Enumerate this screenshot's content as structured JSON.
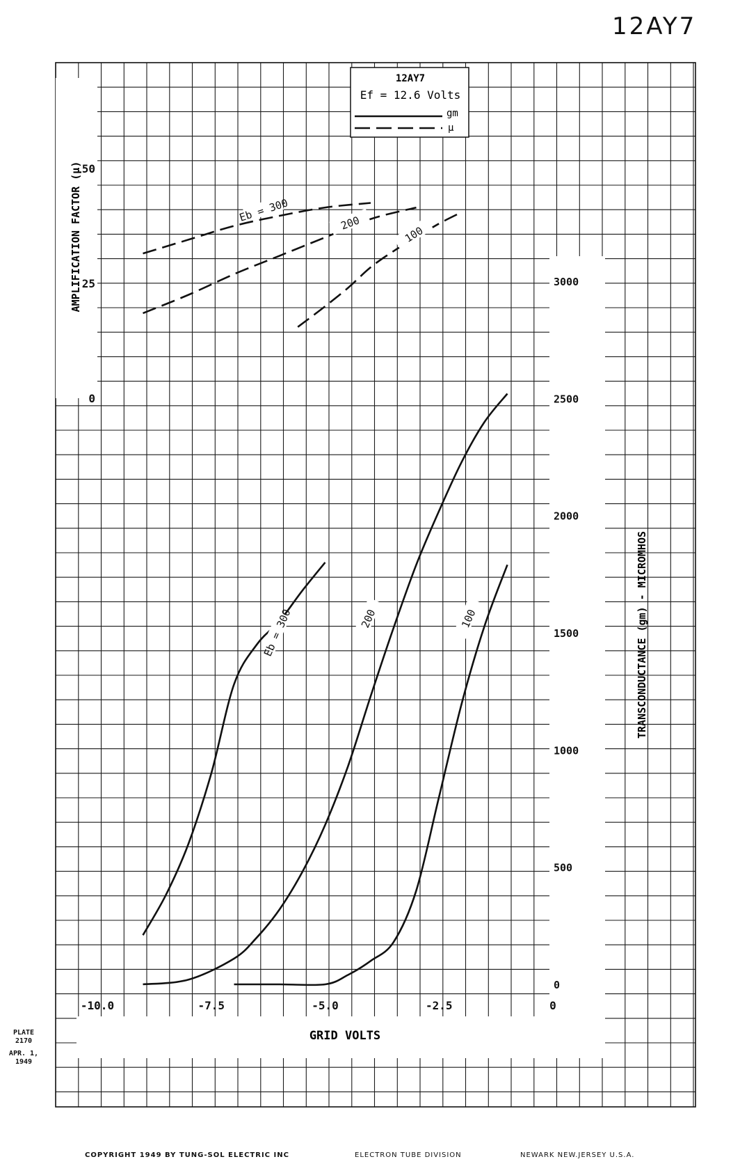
{
  "page": {
    "tube_name": "12AY7",
    "plate_line1": "PLATE",
    "plate_line2": "2170",
    "date_line1": "APR. 1,",
    "date_line2": "1949",
    "copyright": "COPYRIGHT 1949 BY TUNG-SOL ELECTRIC INC",
    "division": "ELECTRON TUBE DIVISION",
    "location": "NEWARK NEW.JERSEY U.S.A."
  },
  "colors": {
    "ink": "#111111",
    "grid": "#1a1a1a",
    "background": "#ffffff"
  },
  "chart_data": {
    "type": "line",
    "legend": {
      "title": "12AY7",
      "condition": "Ef = 12.6 Volts",
      "solid_label": "gm",
      "dashed_label": "μ",
      "placement": "top-center"
    },
    "xlabel": "GRID VOLTS",
    "ylabel_left": "AMPLIFICATION FACTOR (μ)",
    "ylabel_right": "TRANSCONDUCTANCE (gm) - MICROMHOS",
    "xlim": [
      -11.0,
      0
    ],
    "x_ticks": [
      {
        "value": -10.0,
        "label": "-10.0"
      },
      {
        "value": -7.5,
        "label": "-7.5"
      },
      {
        "value": -5.0,
        "label": "-5.0"
      },
      {
        "value": -2.5,
        "label": "-2.5"
      },
      {
        "value": 0,
        "label": "0"
      }
    ],
    "y_left_ticks": [
      {
        "value": 50,
        "label": "50"
      },
      {
        "value": 25,
        "label": "25"
      },
      {
        "value": 0,
        "label": "0"
      }
    ],
    "y_right_ticks": [
      {
        "value": 3000,
        "label": "3000"
      },
      {
        "value": 2500,
        "label": "2500"
      },
      {
        "value": 2000,
        "label": "2000"
      },
      {
        "value": 1500,
        "label": "1500"
      },
      {
        "value": 1000,
        "label": "1000"
      },
      {
        "value": 500,
        "label": "500"
      },
      {
        "value": 0,
        "label": "0"
      }
    ],
    "mu_series": [
      {
        "label": "Eb = 300",
        "style": "dashed",
        "x": [
          -9.0,
          -8.0,
          -7.0,
          -6.0,
          -5.0,
          -4.0
        ],
        "y": [
          31.5,
          34.5,
          37.5,
          39.7,
          41.5,
          42.5
        ]
      },
      {
        "label": "200",
        "style": "dashed",
        "x": [
          -9.0,
          -8.0,
          -7.0,
          -6.0,
          -5.0,
          -4.0,
          -3.0
        ],
        "y": [
          18.5,
          22.5,
          27.0,
          31.0,
          35.0,
          39.0,
          41.5
        ]
      },
      {
        "label": "100",
        "style": "dashed",
        "x": [
          -5.6,
          -5.0,
          -4.5,
          -4.0,
          -3.5,
          -3.0,
          -2.5,
          -2.0
        ],
        "y": [
          15.5,
          20.0,
          24.0,
          28.5,
          32.0,
          35.0,
          38.0,
          40.5
        ]
      }
    ],
    "gm_series": [
      {
        "label": "Eb = 300",
        "style": "solid",
        "x": [
          -9.0,
          -8.5,
          -8.0,
          -7.5,
          -7.0,
          -6.5,
          -6.0,
          -5.5,
          -5.0
        ],
        "y": [
          210,
          380,
          600,
          900,
          1280,
          1450,
          1550,
          1680,
          1800
        ]
      },
      {
        "label": "200",
        "style": "solid",
        "x": [
          -9.0,
          -8.0,
          -7.0,
          -6.5,
          -6.0,
          -5.5,
          -5.0,
          -4.5,
          -4.0,
          -3.5,
          -3.0,
          -2.5,
          -2.0,
          -1.5,
          -1.0
        ],
        "y": [
          0,
          20,
          110,
          200,
          320,
          480,
          680,
          930,
          1230,
          1520,
          1790,
          2020,
          2230,
          2400,
          2520
        ]
      },
      {
        "label": "100",
        "style": "solid",
        "x": [
          -7.0,
          -6.0,
          -5.0,
          -4.5,
          -4.0,
          -3.5,
          -3.0,
          -2.5,
          -2.0,
          -1.5,
          -1.0
        ],
        "y": [
          0,
          0,
          0,
          40,
          100,
          180,
          400,
          800,
          1200,
          1530,
          1790
        ]
      }
    ]
  }
}
